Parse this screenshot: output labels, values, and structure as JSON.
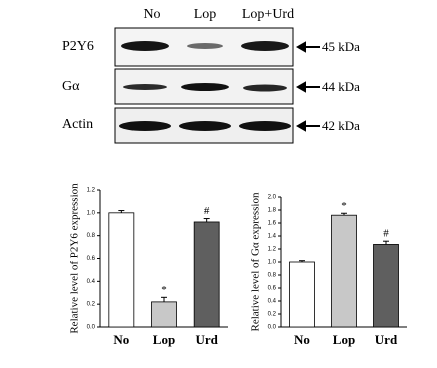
{
  "blot": {
    "lanes": [
      "No",
      "Lop",
      "Lop+Urd"
    ],
    "rows": [
      {
        "label": "P2Y6",
        "size": "45 kDa"
      },
      {
        "label": "Gα",
        "size": "44 kDa"
      },
      {
        "label": "Actin",
        "size": "42 kDa"
      }
    ]
  },
  "chart_data": [
    {
      "type": "bar",
      "ylabel": "Relative level of P2Y6 expression",
      "categories": [
        "No",
        "Lop",
        "Urd"
      ],
      "values": [
        1.0,
        0.22,
        0.92
      ],
      "errors": [
        0.02,
        0.04,
        0.03
      ],
      "colors": [
        "#ffffff",
        "#c8c8c8",
        "#5f5f5f"
      ],
      "annotations": [
        null,
        "*",
        "#"
      ],
      "ylim": [
        0,
        1.2
      ],
      "yticks": [
        {
          "value": 0,
          "label": "0.0"
        },
        {
          "value": 0.2,
          "label": "0.2"
        },
        {
          "value": 0.4,
          "label": "0.4"
        },
        {
          "value": 0.6,
          "label": "0.6"
        },
        {
          "value": 0.8,
          "label": "0.8"
        },
        {
          "value": 1.0,
          "label": "1.0"
        },
        {
          "value": 1.2,
          "label": "1.2"
        }
      ]
    },
    {
      "type": "bar",
      "ylabel": "Relative level of Gα expression",
      "categories": [
        "No",
        "Lop",
        "Urd"
      ],
      "values": [
        1.0,
        1.72,
        1.27
      ],
      "errors": [
        0.02,
        0.03,
        0.05
      ],
      "colors": [
        "#ffffff",
        "#c8c8c8",
        "#5f5f5f"
      ],
      "annotations": [
        null,
        "*",
        "#"
      ],
      "ylim": [
        0,
        2.0
      ],
      "yticks": [
        {
          "value": 0,
          "label": "0.0"
        },
        {
          "value": 0.2,
          "label": "0.2"
        },
        {
          "value": 0.4,
          "label": "0.4"
        },
        {
          "value": 0.6,
          "label": "0.6"
        },
        {
          "value": 0.8,
          "label": "0.8"
        },
        {
          "value": 1.0,
          "label": "1.0"
        },
        {
          "value": 1.2,
          "label": "1.2"
        },
        {
          "value": 1.4,
          "label": "1.4"
        },
        {
          "value": 1.6,
          "label": "1.6"
        },
        {
          "value": 1.8,
          "label": "1.8"
        },
        {
          "value": 2.0,
          "label": "2.0"
        }
      ]
    }
  ]
}
